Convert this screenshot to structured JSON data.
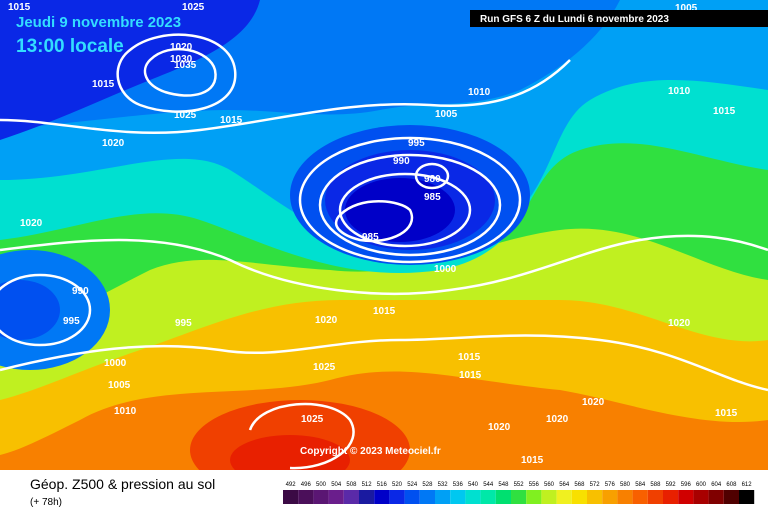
{
  "header": {
    "date": "Jeudi 9 novembre 2023",
    "time": "13:00 locale",
    "run": "Run GFS 6 Z du Lundi 6 novembre 2023"
  },
  "copyright": "Copyright © 2023 Meteociel.fr",
  "footer": {
    "title": "Géop. Z500 & pression au sol",
    "lead": "(+ 78h)"
  },
  "legend": {
    "values": [
      492,
      496,
      500,
      504,
      508,
      512,
      516,
      520,
      524,
      528,
      532,
      536,
      540,
      544,
      548,
      552,
      556,
      560,
      564,
      568,
      572,
      576,
      580,
      584,
      588,
      592,
      596,
      600,
      604,
      608,
      612
    ],
    "colors": [
      "#3b0a45",
      "#4b0f5a",
      "#5a1673",
      "#6a1e8c",
      "#5a2aa8",
      "#1a1aa0",
      "#0000c8",
      "#0a28e6",
      "#0050f0",
      "#0078f5",
      "#00a0f5",
      "#00c8f0",
      "#00e0d0",
      "#00e8a8",
      "#00e070",
      "#30e040",
      "#80f020",
      "#c0f020",
      "#f0f020",
      "#f8e000",
      "#f8c000",
      "#f8a000",
      "#f88000",
      "#f86000",
      "#f04000",
      "#e82000",
      "#d00000",
      "#a80000",
      "#800000",
      "#500000",
      "#000000"
    ]
  },
  "isobar_labels": [
    1025,
    1015,
    1020,
    1030,
    1035,
    1015,
    1025,
    1015,
    1020,
    1010,
    1005,
    995,
    990,
    980,
    985,
    985,
    1000,
    1020,
    990,
    995,
    995,
    1020,
    1015,
    1000,
    1005,
    1010,
    1025,
    1015,
    1015,
    1020,
    1020,
    1020,
    1025,
    1015,
    1020,
    1015,
    1010,
    1015,
    1005
  ]
}
